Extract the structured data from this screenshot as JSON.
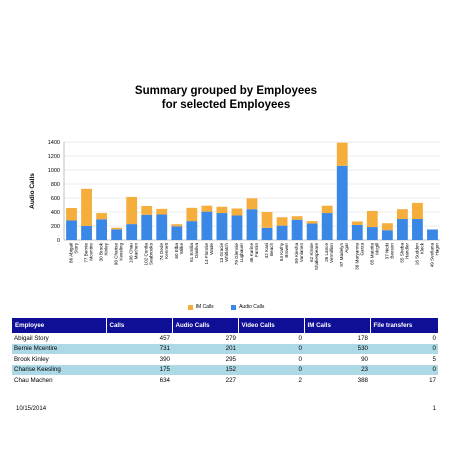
{
  "report": {
    "title_line1": "Summary grouped by Employees",
    "title_line2": "for selected Employees"
  },
  "colors": {
    "im": "#f5ae3b",
    "audio": "#3a87e6",
    "header": "#0e0e96",
    "alt_row": "#add8e6"
  },
  "chart_data": {
    "type": "bar",
    "stacked": true,
    "ylabel": "Audio Calls",
    "ylim": [
      0,
      1400
    ],
    "yticks": [
      0,
      200,
      400,
      600,
      800,
      1000,
      1200,
      1400
    ],
    "grid": true,
    "legend_position": "bottom",
    "categories": [
      "86 Abigail Story",
      "77 Bernie Mcentire",
      "30 Brook Kinley",
      "98 Charise Keesling",
      "106 Chau Machen",
      "102 Cordia Seabrooks",
      "74 Dede Kennett",
      "60 Elba Wilke",
      "61 Emilia Dasilva",
      "14 Flonnie Wade",
      "13 Gracie Whitlatch",
      "79 Glennie Lugbauer",
      "46 Karine Fannin",
      "42 Kasi Beach",
      "54 Kathy Brower",
      "59 Kiesha Vanlanen",
      "62 Kinsie Shakespeare",
      "26 Lance Vermillion",
      "97 Madelyn Agar",
      "38 Maryanna Garza",
      "65 Maurita Mcgill",
      "37 Nicki Beeson",
      "55 Sheba Handler",
      "16 Sudden Kleck",
      "49 Svetlana Hager"
    ],
    "series": [
      {
        "name": "Audio Calls",
        "color": "#3a87e6",
        "values": [
          279,
          201,
          295,
          152,
          227,
          360,
          365,
          195,
          270,
          405,
          385,
          350,
          440,
          175,
          205,
          290,
          235,
          385,
          1060,
          215,
          185,
          140,
          300,
          300,
          150
        ]
      },
      {
        "name": "IM Calls",
        "color": "#f5ae3b",
        "values": [
          178,
          530,
          90,
          23,
          388,
          125,
          80,
          30,
          190,
          85,
          90,
          100,
          155,
          225,
          120,
          50,
          35,
          105,
          330,
          50,
          230,
          100,
          140,
          230,
          0
        ]
      }
    ]
  },
  "table": {
    "headers": [
      "Employee",
      "Calls",
      "Audio Calls",
      "Video Calls",
      "IM Calls",
      "File transfers"
    ],
    "rows": [
      [
        "Abigail Story",
        "457",
        "279",
        "0",
        "178",
        "0"
      ],
      [
        "Bernie Mcentire",
        "731",
        "201",
        "0",
        "530",
        "0"
      ],
      [
        "Brook Kinley",
        "390",
        "295",
        "0",
        "90",
        "5"
      ],
      [
        "Charise Keesling",
        "175",
        "152",
        "0",
        "23",
        "0"
      ],
      [
        "Chau Machen",
        "634",
        "227",
        "2",
        "388",
        "17"
      ]
    ]
  },
  "footer": {
    "date": "10/15/2014",
    "page": "1"
  }
}
